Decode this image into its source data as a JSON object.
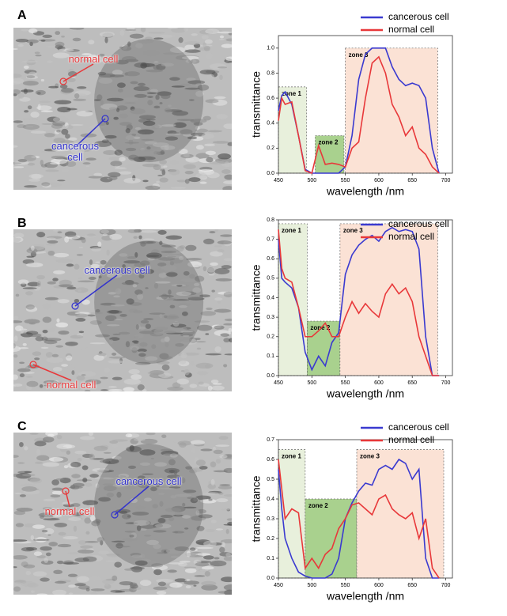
{
  "chart_data": [
    {
      "type": "line",
      "panel": "A",
      "image_annotations": [
        {
          "text": "normal cell",
          "color": "#e8383a"
        },
        {
          "text": "cancerous cell",
          "color": "#3333cc"
        }
      ],
      "xlabel": "wavelength /nm",
      "ylabel": "transmittance",
      "xlim": [
        450,
        710
      ],
      "ylim": [
        0,
        1.1
      ],
      "xticks": [
        450,
        500,
        550,
        600,
        650,
        700
      ],
      "yticks": [
        {
          "value": 0,
          "label": "0.0"
        },
        {
          "value": 0.2,
          "label": "0.2"
        },
        {
          "value": 0.4,
          "label": "0.4"
        },
        {
          "value": 0.6,
          "label": "0.6"
        },
        {
          "value": 0.8,
          "label": "0.8"
        },
        {
          "value": 1.0,
          "label": "1.0"
        }
      ],
      "zones": [
        {
          "label": "zone 1",
          "x": [
            450,
            492
          ],
          "top": 0.69,
          "color": "#e8f0dc"
        },
        {
          "label": "zone 2",
          "x": [
            505,
            548
          ],
          "top": 0.3,
          "color": "#a9d18e"
        },
        {
          "label": "zone 3",
          "x": [
            550,
            688
          ],
          "top": 1.0,
          "color": "#fbe2d5"
        }
      ],
      "x": [
        450,
        455,
        460,
        470,
        480,
        490,
        500,
        510,
        520,
        530,
        540,
        550,
        560,
        570,
        580,
        590,
        600,
        610,
        620,
        630,
        640,
        650,
        660,
        670,
        680,
        690
      ],
      "series": [
        {
          "name": "cancerous cell",
          "color": "#3a3ad0",
          "values": [
            0.5,
            0.62,
            0.65,
            0.55,
            0.3,
            0.03,
            0,
            0,
            0,
            0,
            0,
            0.05,
            0.3,
            0.75,
            0.95,
            1.0,
            1.0,
            1.0,
            0.85,
            0.75,
            0.7,
            0.72,
            0.7,
            0.6,
            0.2,
            0
          ]
        },
        {
          "name": "normal cell",
          "color": "#e8383a",
          "values": [
            0.42,
            0.6,
            0.55,
            0.57,
            0.3,
            0.02,
            0,
            0.22,
            0.07,
            0.08,
            0.07,
            0.05,
            0.2,
            0.25,
            0.6,
            0.88,
            0.93,
            0.8,
            0.55,
            0.45,
            0.3,
            0.37,
            0.2,
            0.15,
            0.05,
            0
          ]
        }
      ]
    },
    {
      "type": "line",
      "panel": "B",
      "image_annotations": [
        {
          "text": "normal cell",
          "color": "#e8383a"
        },
        {
          "text": "cancerous cell",
          "color": "#3333cc"
        }
      ],
      "xlabel": "wavelength /nm",
      "ylabel": "transmittance",
      "xlim": [
        450,
        710
      ],
      "ylim": [
        0,
        0.8
      ],
      "xticks": [
        450,
        500,
        550,
        600,
        650,
        700
      ],
      "yticks": [
        {
          "value": 0,
          "label": "0.0"
        },
        0.1,
        0.2,
        0.3,
        0.4,
        0.5,
        0.6,
        0.7,
        0.8
      ],
      "zones": [
        {
          "label": "zone 1",
          "x": [
            450,
            493
          ],
          "top": 0.78,
          "color": "#e8f0dc"
        },
        {
          "label": "zone 2",
          "x": [
            493,
            542
          ],
          "top": 0.28,
          "color": "#a9d18e"
        },
        {
          "label": "zone 3",
          "x": [
            542,
            688
          ],
          "top": 0.78,
          "color": "#fbe2d5"
        }
      ],
      "x": [
        450,
        455,
        460,
        470,
        480,
        490,
        500,
        510,
        520,
        530,
        540,
        550,
        560,
        570,
        580,
        590,
        600,
        610,
        620,
        630,
        640,
        650,
        660,
        670,
        680,
        690
      ],
      "series": [
        {
          "name": "cancerous cell",
          "color": "#3a3ad0",
          "values": [
            0.7,
            0.5,
            0.48,
            0.45,
            0.35,
            0.12,
            0.03,
            0.1,
            0.05,
            0.17,
            0.22,
            0.52,
            0.62,
            0.67,
            0.7,
            0.72,
            0.69,
            0.74,
            0.76,
            0.74,
            0.75,
            0.74,
            0.65,
            0.2,
            0,
            0
          ]
        },
        {
          "name": "normal cell",
          "color": "#e8383a",
          "values": [
            0.75,
            0.55,
            0.5,
            0.48,
            0.35,
            0.2,
            0.2,
            0.23,
            0.27,
            0.2,
            0.2,
            0.3,
            0.38,
            0.32,
            0.37,
            0.33,
            0.3,
            0.42,
            0.47,
            0.42,
            0.45,
            0.38,
            0.2,
            0.1,
            0,
            0
          ]
        }
      ]
    },
    {
      "type": "line",
      "panel": "C",
      "image_annotations": [
        {
          "text": "normal cell",
          "color": "#e8383a"
        },
        {
          "text": "cancerous cell",
          "color": "#3333cc"
        }
      ],
      "xlabel": "wavelength /nm",
      "ylabel": "transmittance",
      "xlim": [
        450,
        710
      ],
      "ylim": [
        0,
        0.7
      ],
      "xticks": [
        450,
        500,
        550,
        600,
        650,
        700
      ],
      "yticks": [
        {
          "value": 0,
          "label": "0.0"
        },
        0.1,
        0.2,
        0.3,
        0.4,
        0.5,
        0.6,
        0.7
      ],
      "zones": [
        {
          "label": "zone 1",
          "x": [
            450,
            490
          ],
          "top": 0.65,
          "color": "#e8f0dc"
        },
        {
          "label": "zone 2",
          "x": [
            490,
            567
          ],
          "top": 0.4,
          "color": "#a9d18e"
        },
        {
          "label": "zone 3",
          "x": [
            567,
            697
          ],
          "top": 0.65,
          "color": "#fbe2d5"
        }
      ],
      "x": [
        450,
        455,
        460,
        470,
        480,
        490,
        500,
        510,
        520,
        530,
        540,
        550,
        560,
        570,
        580,
        590,
        600,
        610,
        620,
        630,
        640,
        650,
        660,
        670,
        680,
        690
      ],
      "series": [
        {
          "name": "cancerous cell",
          "color": "#3a3ad0",
          "values": [
            0.55,
            0.35,
            0.2,
            0.1,
            0.03,
            0.01,
            0,
            0,
            0,
            0.02,
            0.1,
            0.3,
            0.38,
            0.44,
            0.48,
            0.47,
            0.55,
            0.57,
            0.55,
            0.6,
            0.58,
            0.5,
            0.55,
            0.1,
            0,
            0
          ]
        },
        {
          "name": "normal cell",
          "color": "#e8383a",
          "values": [
            0.6,
            0.45,
            0.3,
            0.35,
            0.33,
            0.05,
            0.1,
            0.05,
            0.12,
            0.15,
            0.25,
            0.3,
            0.37,
            0.38,
            0.35,
            0.32,
            0.4,
            0.42,
            0.35,
            0.32,
            0.3,
            0.33,
            0.2,
            0.3,
            0.05,
            0
          ]
        }
      ]
    }
  ]
}
